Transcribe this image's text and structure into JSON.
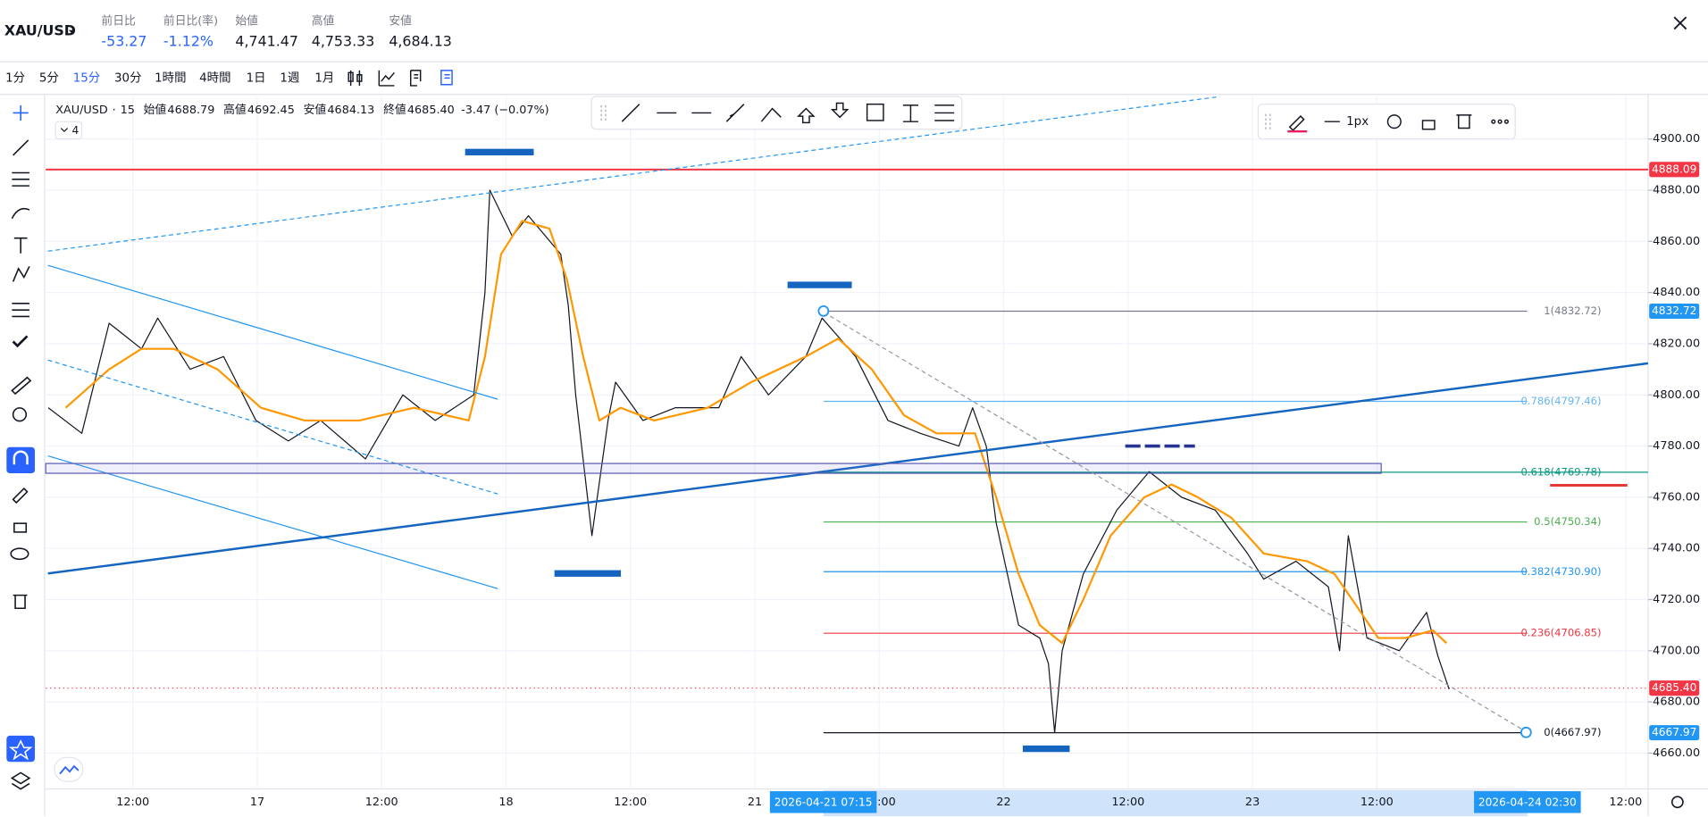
{
  "header": {
    "symbol": "XAU/USD",
    "stats": [
      {
        "label": "前日比",
        "value": "-53.27",
        "color": "#2962ff"
      },
      {
        "label": "前日比(率)",
        "value": "-1.12%",
        "color": "#2962ff"
      },
      {
        "label": "始値",
        "value": "4,741.47",
        "color": "#131722"
      },
      {
        "label": "高値",
        "value": "4,753.33",
        "color": "#131722"
      },
      {
        "label": "安値",
        "value": "4,684.13",
        "color": "#131722"
      }
    ]
  },
  "timeframes": [
    "1分",
    "5分",
    "15分",
    "30分",
    "1時間",
    "4時間",
    "1日",
    "1週",
    "1月"
  ],
  "active_timeframe": 2,
  "legend": {
    "symbol": "XAU/USD",
    "interval": "15",
    "items": [
      {
        "label": "始値",
        "value": "4688.79"
      },
      {
        "label": "高値",
        "value": "4692.45"
      },
      {
        "label": "安値",
        "value": "4684.13"
      },
      {
        "label": "終値",
        "value": "4685.40"
      }
    ],
    "change": "-3.47 (−0.07%)",
    "indicator_count": "4"
  },
  "drawing_toolbar": {
    "width_label": "1px"
  },
  "chart_data": {
    "type": "line",
    "series": [
      {
        "color": "#131722",
        "x": [
          -0.68,
          -0.41,
          -0.19,
          0.07,
          0.2,
          0.46,
          0.73,
          0.99,
          1.25,
          1.51,
          1.87,
          2.17,
          2.43,
          2.74,
          2.83,
          2.87,
          3.05,
          3.18,
          3.44,
          3.5,
          3.56,
          3.69,
          3.82,
          3.88,
          4.1,
          4.36,
          4.71,
          4.89,
          5.11,
          5.41,
          5.54,
          5.81,
          6.07,
          6.33,
          6.64,
          6.75,
          6.86,
          6.94,
          7.12,
          7.29,
          7.36,
          7.41,
          7.47,
          7.64,
          7.91,
          8.17,
          8.43,
          8.7,
          8.96,
          9.09,
          9.35,
          9.61,
          9.7,
          9.77,
          9.92,
          10.18,
          10.4,
          10.49,
          10.58
        ],
        "values": [
          4795,
          4785,
          4828,
          4818,
          4830,
          4810,
          4815,
          4790,
          4782,
          4790,
          4775,
          4800,
          4790,
          4800,
          4840,
          4880,
          4862,
          4870,
          4855,
          4835,
          4800,
          4745,
          4790,
          4805,
          4790,
          4795,
          4795,
          4815,
          4800,
          4815,
          4830,
          4815,
          4790,
          4785,
          4780,
          4795,
          4780,
          4750,
          4710,
          4705,
          4695,
          4668,
          4700,
          4730,
          4755,
          4770,
          4760,
          4755,
          4738,
          4728,
          4735,
          4725,
          4700,
          4745,
          4705,
          4700,
          4715,
          4698,
          4685
        ]
      },
      {
        "color": "#ff9800",
        "x": [
          -0.54,
          -0.19,
          0.07,
          0.33,
          0.68,
          1.03,
          1.38,
          1.82,
          2.26,
          2.7,
          2.83,
          2.96,
          3.13,
          3.35,
          3.49,
          3.62,
          3.75,
          3.92,
          4.19,
          4.62,
          4.97,
          5.41,
          5.67,
          5.94,
          6.2,
          6.46,
          6.77,
          6.94,
          7.12,
          7.29,
          7.47,
          7.64,
          7.86,
          8.13,
          8.35,
          8.56,
          8.83,
          9.09,
          9.44,
          9.66,
          9.83,
          10.01,
          10.23,
          10.45,
          10.56
        ],
        "values": [
          4795,
          4810,
          4818,
          4818,
          4810,
          4795,
          4790,
          4790,
          4795,
          4790,
          4815,
          4855,
          4868,
          4865,
          4845,
          4815,
          4790,
          4795,
          4790,
          4795,
          4805,
          4815,
          4822,
          4810,
          4792,
          4785,
          4785,
          4760,
          4730,
          4710,
          4703,
          4720,
          4745,
          4760,
          4765,
          4760,
          4752,
          4738,
          4735,
          4730,
          4718,
          4705,
          4705,
          4708,
          4703
        ]
      }
    ],
    "xlim": [
      -0.7,
      12.18
    ],
    "xticks": [
      {
        "value": 0,
        "label": "12:00"
      },
      {
        "value": 1,
        "label": "17"
      },
      {
        "value": 2,
        "label": "12:00"
      },
      {
        "value": 3,
        "label": "18"
      },
      {
        "value": 4,
        "label": "12:00"
      },
      {
        "value": 5,
        "label": "21"
      },
      {
        "value": 6,
        "label": "12:00"
      },
      {
        "value": 7,
        "label": "22"
      },
      {
        "value": 8,
        "label": "12:00"
      },
      {
        "value": 9,
        "label": "23"
      },
      {
        "value": 10,
        "label": "12:00"
      },
      {
        "value": 12,
        "label": "12:00"
      }
    ],
    "ylim": [
      4645.96,
      4916.6
    ],
    "yticks": [
      {
        "value": 4660,
        "label": "4660.00"
      },
      {
        "value": 4680,
        "label": "4680.00"
      },
      {
        "value": 4700,
        "label": "4700.00"
      },
      {
        "value": 4720,
        "label": "4720.00"
      },
      {
        "value": 4740,
        "label": "4740.00"
      },
      {
        "value": 4760,
        "label": "4760.00"
      },
      {
        "value": 4780,
        "label": "4780.00"
      },
      {
        "value": 4800,
        "label": "4800.00"
      },
      {
        "value": 4820,
        "label": "4820.00"
      },
      {
        "value": 4840,
        "label": "4840.00"
      },
      {
        "value": 4860,
        "label": "4860.00"
      },
      {
        "value": 4880,
        "label": "4880.00"
      },
      {
        "value": 4900,
        "label": "4900.00"
      }
    ],
    "grid": true,
    "fib_levels": [
      {
        "value": 4832.72,
        "label": "1(4832.72)",
        "color": "#787b86"
      },
      {
        "value": 4797.46,
        "label": "0.786(4797.46)",
        "color": "#64b5f6"
      },
      {
        "value": 4769.78,
        "label": "0.618(4769.78)",
        "color": "#089981"
      },
      {
        "value": 4750.34,
        "label": "0.5(4750.34)",
        "color": "#4caf50"
      },
      {
        "value": 4730.9,
        "label": "0.382(4730.90)",
        "color": "#2196f3"
      },
      {
        "value": 4706.85,
        "label": "0.236(4706.85)",
        "color": "#f23645"
      },
      {
        "value": 4667.97,
        "label": "0(4667.97)",
        "color": "#131722"
      }
    ],
    "price_labels": [
      {
        "value": 4888.09,
        "label": "4888.09",
        "color": "#f23645",
        "line": "solid"
      },
      {
        "value": 4832.72,
        "label": "4832.72",
        "color": "#2196f3"
      },
      {
        "value": 4685.4,
        "label": "4685.40",
        "color": "#f23645",
        "line": "dotted"
      },
      {
        "value": 4667.97,
        "label": "4667.97",
        "color": "#2196f3"
      }
    ],
    "crosshair_labels": [
      {
        "value": 5.55,
        "label": "2026-04-21  07:15"
      },
      {
        "value": 11.21,
        "label": "2026-04-24  02:30"
      }
    ]
  }
}
